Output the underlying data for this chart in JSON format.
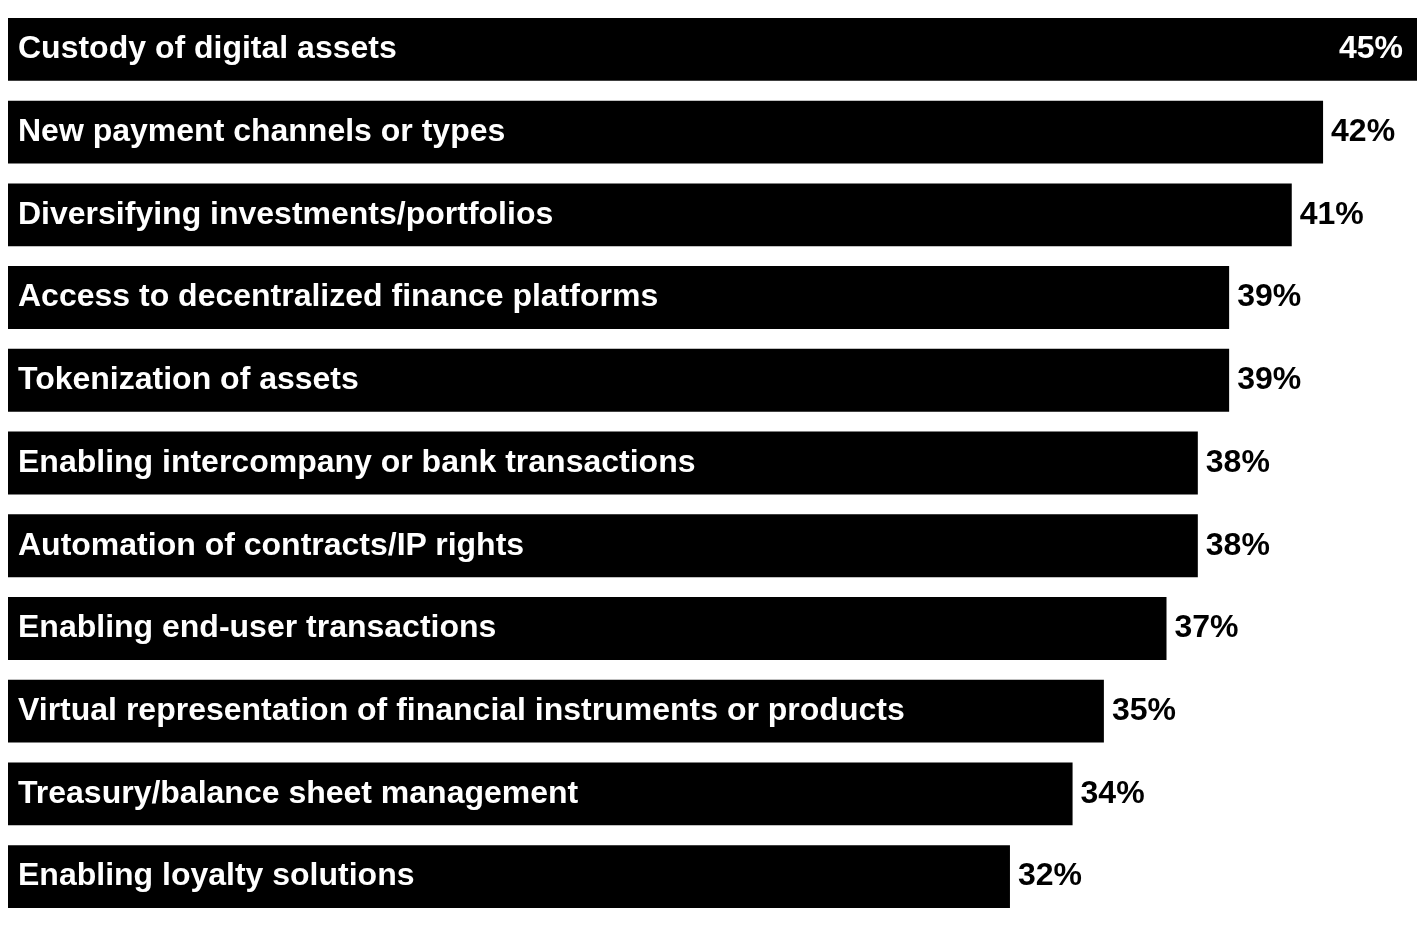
{
  "chart_data": {
    "type": "bar",
    "orientation": "horizontal",
    "categories": [
      "Custody of digital assets",
      "New payment channels or types",
      "Diversifying investments/portfolios",
      "Access to decentralized finance platforms",
      "Tokenization of assets",
      "Enabling intercompany or bank transactions",
      "Automation of contracts/IP rights",
      "Enabling end-user transactions",
      "Virtual representation of financial instruments or products",
      "Treasury/balance sheet management",
      "Enabling loyalty solutions"
    ],
    "values": [
      45,
      42,
      41,
      39,
      39,
      38,
      38,
      37,
      35,
      34,
      32
    ],
    "value_labels": [
      "45%",
      "42%",
      "41%",
      "39%",
      "39%",
      "38%",
      "38%",
      "37%",
      "35%",
      "34%",
      "32%"
    ],
    "color": "#000000",
    "xlim": [
      0,
      45
    ]
  }
}
